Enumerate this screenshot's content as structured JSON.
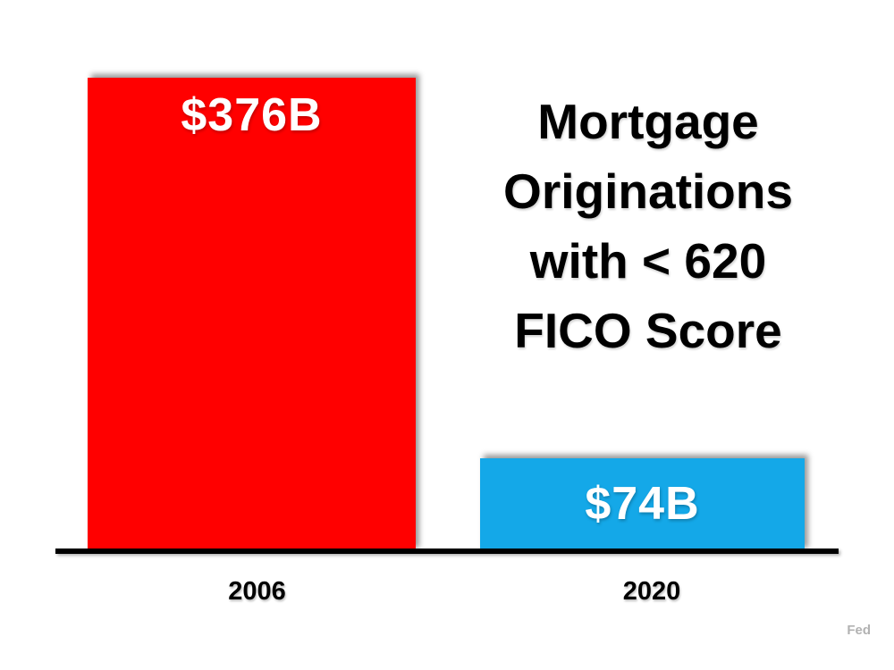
{
  "chart_data": {
    "type": "bar",
    "title": "Mortgage Originations with < 620 FICO Score",
    "title_lines": [
      "Mortgage",
      "Originations",
      "with < 620",
      "FICO Score"
    ],
    "categories": [
      "2006",
      "2020"
    ],
    "values": [
      376,
      74
    ],
    "value_labels": [
      "$376B",
      "$74B"
    ],
    "bar_colors": [
      "#ff0000",
      "#14a8e8"
    ],
    "value_label_color": "#ffffff",
    "label_positions": [
      "top",
      "center"
    ],
    "axis_color": "#000000",
    "background_color": "#ffffff",
    "grid": false,
    "legend": false,
    "ylim": [
      0,
      400
    ],
    "source": "Fed"
  }
}
